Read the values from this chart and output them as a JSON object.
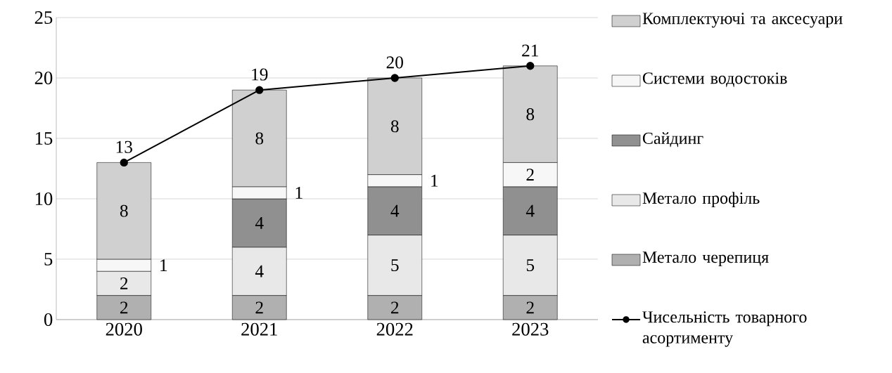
{
  "chart_data": {
    "type": "bar",
    "stacked": true,
    "categories": [
      "2020",
      "2021",
      "2022",
      "2023"
    ],
    "ylim": [
      0,
      25
    ],
    "yticks": [
      0,
      5,
      10,
      15,
      20,
      25
    ],
    "grid": "y",
    "legend": "right",
    "data_labels": true,
    "marker": "circle",
    "line_style": "solid",
    "series": [
      {
        "name": "Метало черепиця",
        "color": "#b0b0b0",
        "values": [
          2,
          2,
          2,
          2
        ]
      },
      {
        "name": "Метало профіль",
        "color": "#e8e8e8",
        "values": [
          2,
          4,
          5,
          5
        ]
      },
      {
        "name": "Сайдинг",
        "color": "#909090",
        "values": [
          null,
          4,
          4,
          4
        ]
      },
      {
        "name": "Системи водостоків",
        "color": "#f7f7f7",
        "values": [
          1,
          1,
          1,
          2
        ]
      },
      {
        "name": "Комплектуючі та аксесуари",
        "color": "#d0d0d0",
        "values": [
          8,
          8,
          8,
          8
        ]
      },
      {
        "name": "Чисельність товарного асортименту",
        "type": "line",
        "color": "#000000",
        "values": [
          13,
          19,
          20,
          21
        ]
      }
    ]
  }
}
